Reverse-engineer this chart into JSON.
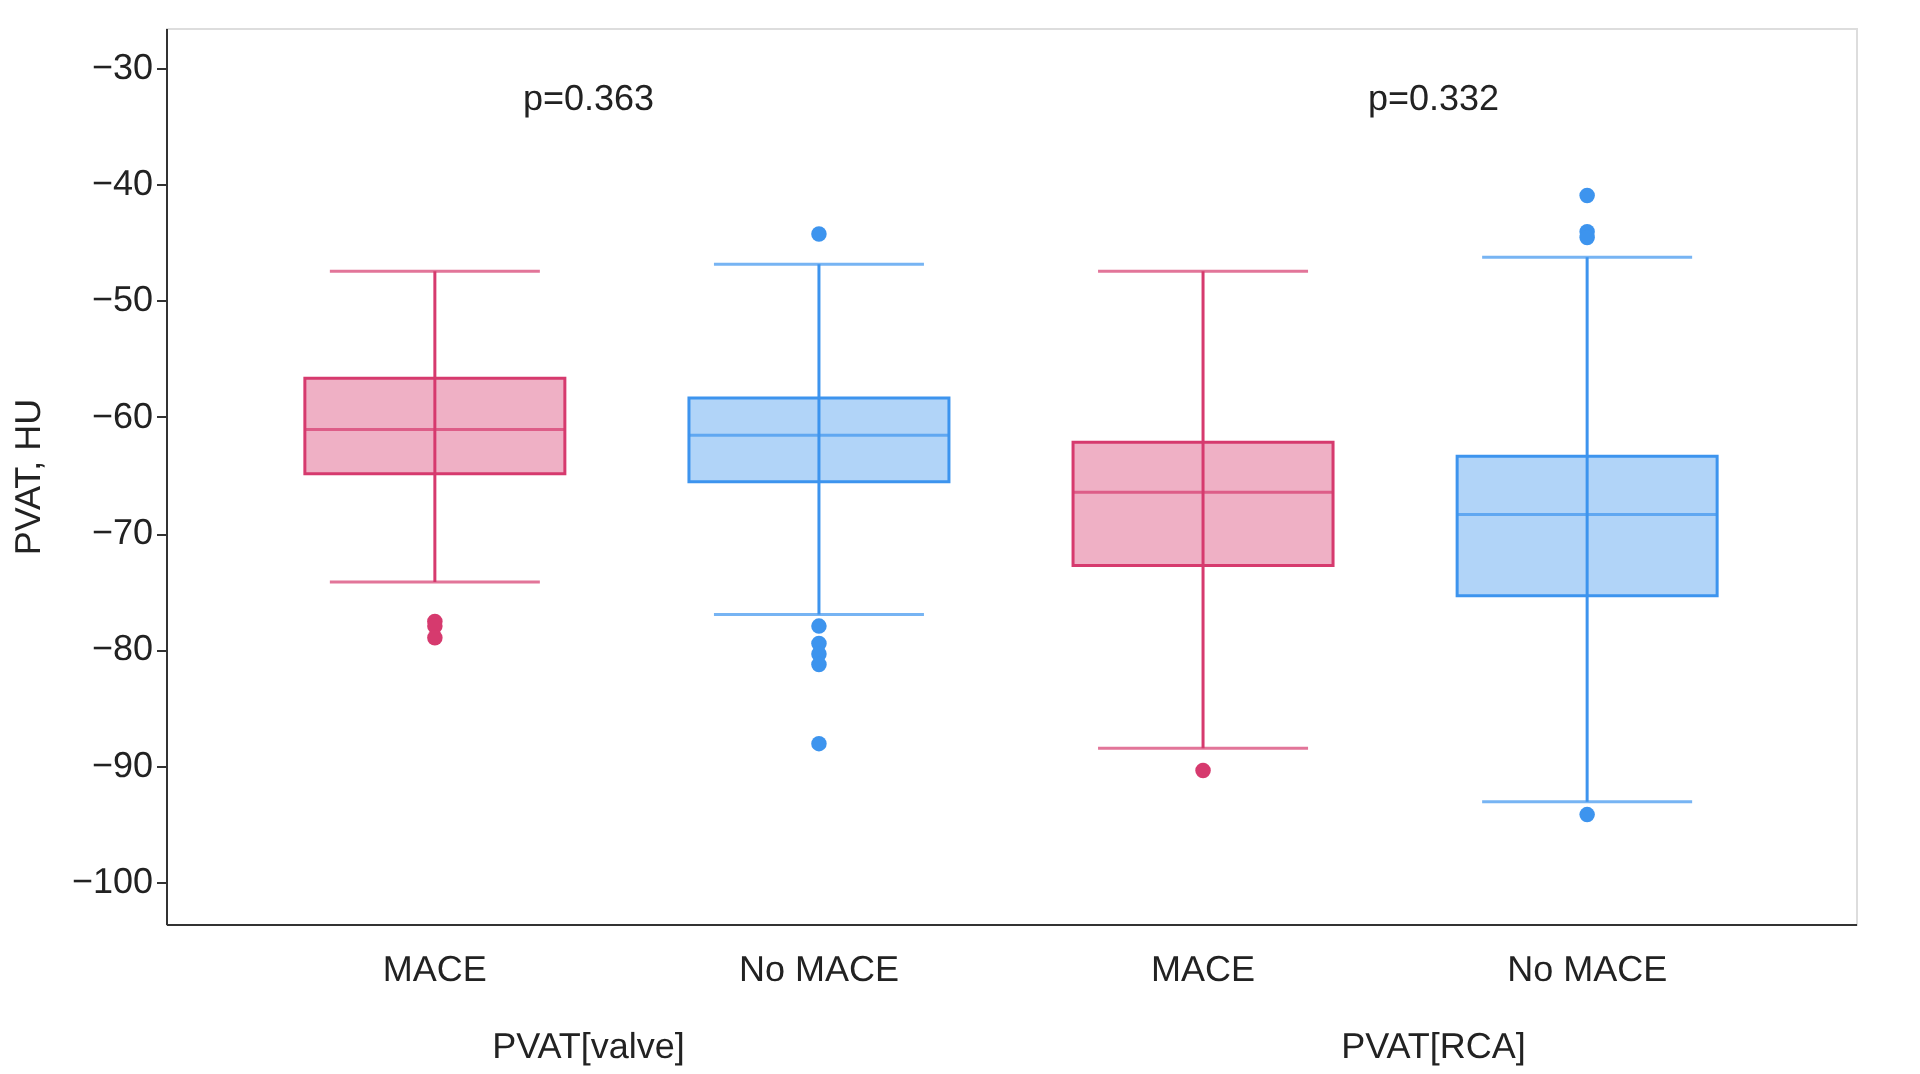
{
  "chart_data": {
    "type": "box",
    "ylabel": "PVAT, HU",
    "categories": [
      "MACE",
      "No MACE",
      "MACE",
      "No MACE"
    ],
    "colors": [
      "#d63a6e",
      "#3d94ee",
      "#d63a6e",
      "#3d94ee"
    ],
    "boxes": [
      {
        "low": -74.2,
        "q1": -64.9,
        "median": -61.1,
        "q3": -56.7,
        "high": -47.5,
        "outliers": [
          -77.6,
          -78.0,
          -79.0
        ]
      },
      {
        "low": -77.0,
        "q1": -65.6,
        "median": -61.6,
        "q3": -58.4,
        "high": -46.9,
        "outliers": [
          -44.3,
          -78.0,
          -79.5,
          -80.4,
          -81.3,
          -88.1
        ]
      },
      {
        "low": -88.5,
        "q1": -72.8,
        "median": -66.5,
        "q3": -62.2,
        "high": -47.5,
        "outliers": [
          -90.4
        ]
      },
      {
        "low": -93.1,
        "q1": -75.4,
        "median": -68.4,
        "q3": -63.4,
        "high": -46.3,
        "outliers": [
          -41.0,
          -44.1,
          -44.6,
          -94.2
        ]
      }
    ],
    "ylim": [
      -103.6,
      -26.6
    ],
    "yticks": [
      -100,
      -90,
      -80,
      -70,
      -60,
      -50,
      -40,
      -30
    ],
    "grid": false,
    "annotations": [
      "p=0.363",
      "p=0.332",
      "PVAT[valve]",
      "PVAT[RCA]"
    ]
  }
}
